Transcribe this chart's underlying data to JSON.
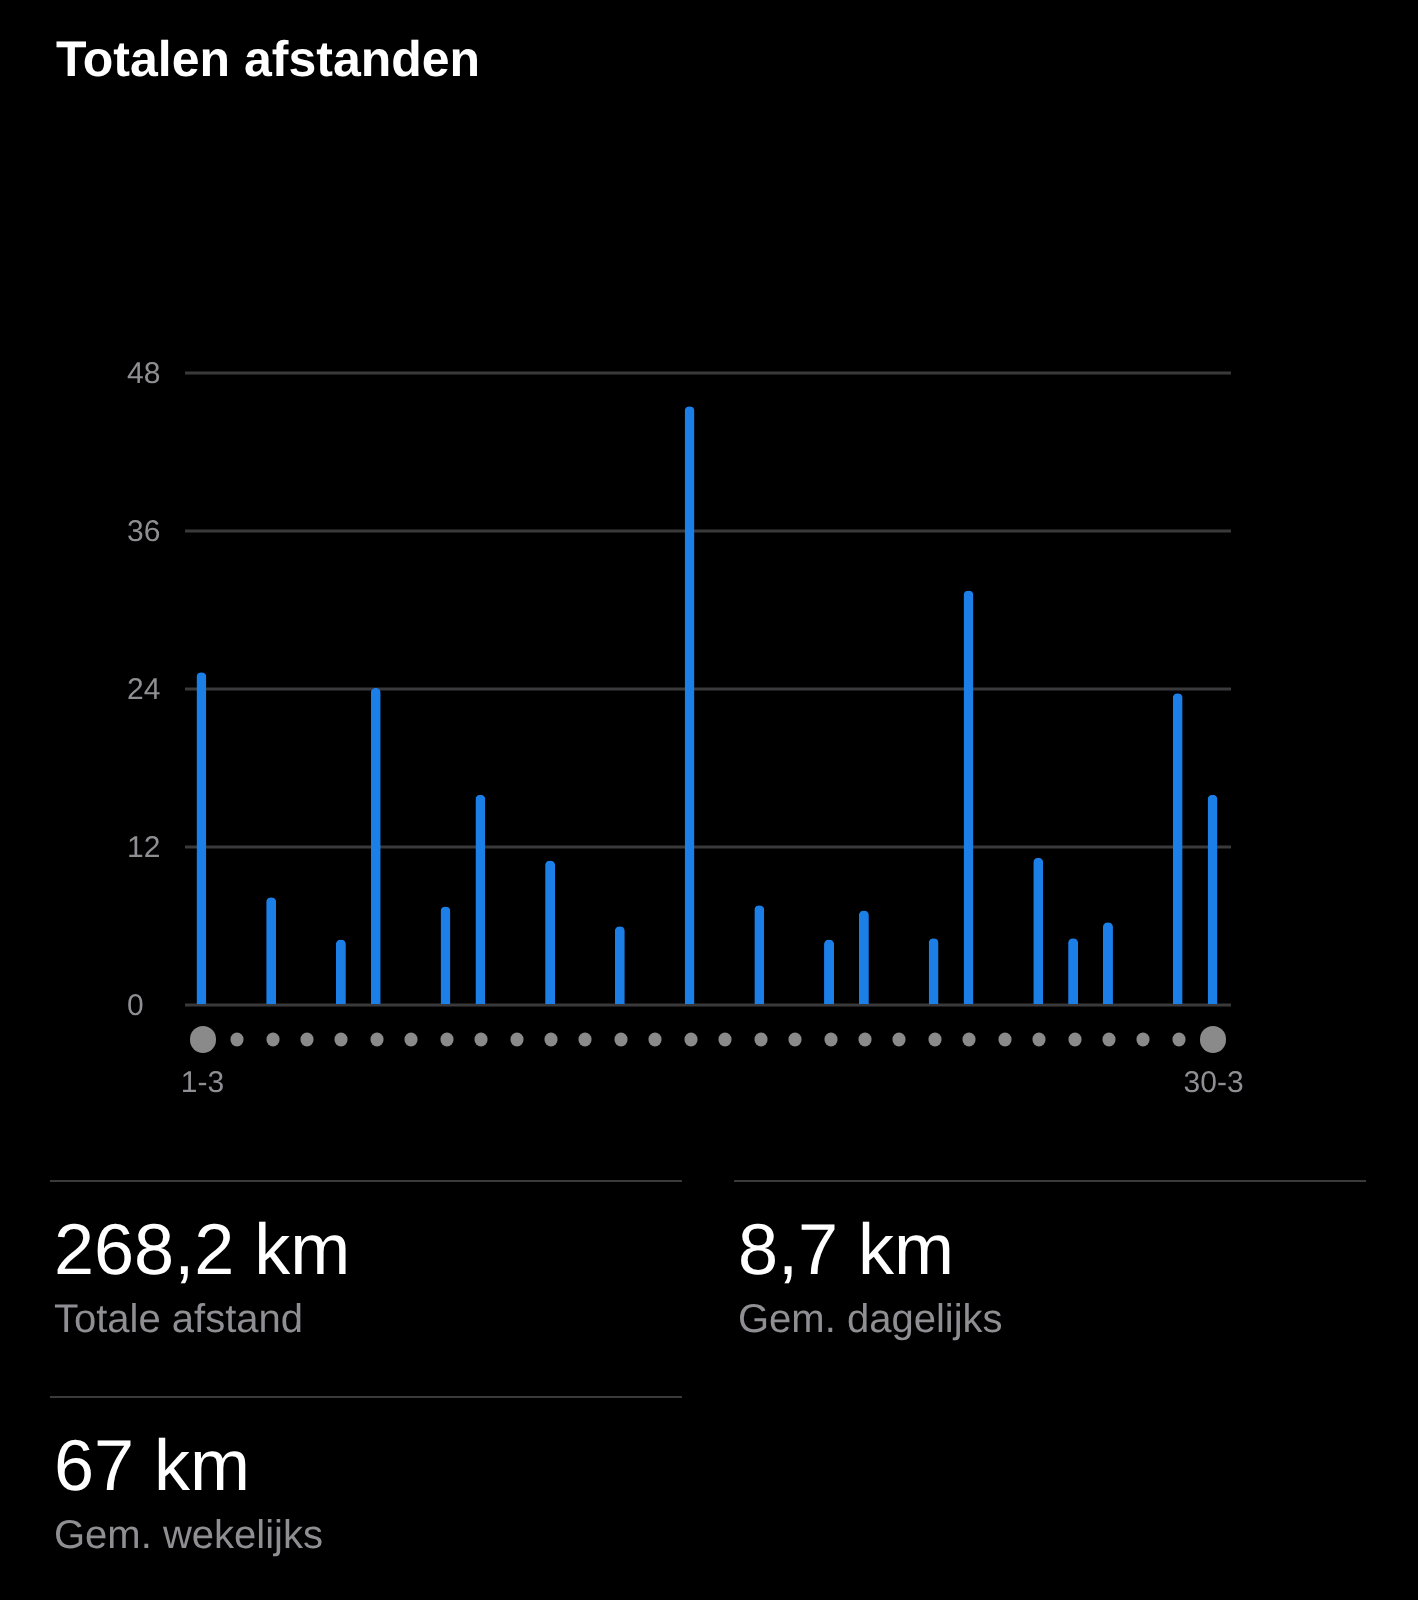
{
  "chart_data": {
    "type": "bar",
    "title": "Totalen afstanden",
    "categories": [
      "1-3",
      null,
      null,
      null,
      null,
      null,
      null,
      null,
      null,
      null,
      null,
      null,
      null,
      null,
      null,
      null,
      null,
      null,
      null,
      null,
      null,
      null,
      null,
      null,
      null,
      null,
      null,
      null,
      null,
      "30-3"
    ],
    "values": [
      25.2,
      null,
      8.1,
      null,
      4.9,
      24.0,
      null,
      7.4,
      15.9,
      null,
      10.9,
      null,
      5.9,
      null,
      45.4,
      null,
      7.5,
      null,
      4.9,
      7.1,
      null,
      5.0,
      31.4,
      null,
      11.1,
      5.0,
      6.2,
      null,
      23.6,
      15.9
    ],
    "color": "#1b7fe7",
    "ylim": [
      0,
      48
    ],
    "yticks": [
      0,
      12,
      24,
      36,
      48
    ],
    "grid": "y",
    "annotations": [
      "268,2 km",
      "Totale afstand",
      "8,7 km",
      "Gem. dagelijks",
      "67 km",
      "Gem. wekelijks"
    ]
  }
}
